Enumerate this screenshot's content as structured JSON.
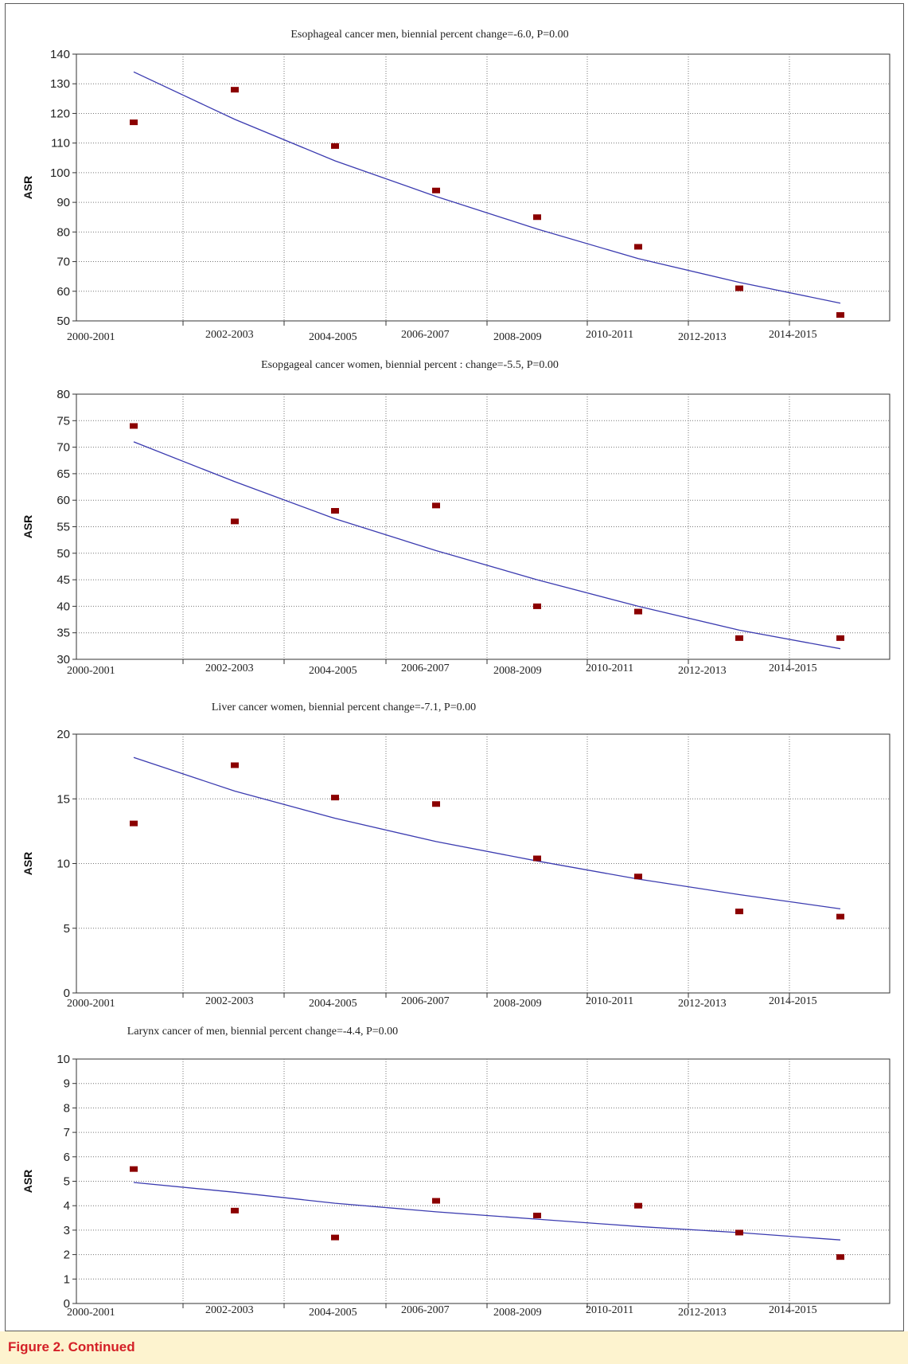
{
  "caption": "Figure 2. Continued",
  "colors": {
    "point": "#8b0000",
    "fit_line": "#3b3bb0",
    "caption_bg": "#fdf3cf",
    "caption_text": "#d42027"
  },
  "chart_data": [
    {
      "type": "scatter",
      "title": "Esophageal cancer men, biennial percent  change=-6.0, P=0.00",
      "ylabel": "ASR",
      "xlabel": "",
      "categories": [
        "2000-2001",
        "2002-2003",
        "2004-2005",
        "2006-2007",
        "2008-2009",
        "2010-2011",
        "2012-2013",
        "2014-2015"
      ],
      "values": [
        117,
        128,
        109,
        94,
        85,
        75,
        61,
        52
      ],
      "fit": [
        134,
        118,
        104,
        92,
        81,
        71,
        63,
        56
      ],
      "ylim": [
        50,
        140
      ],
      "yticks": [
        50,
        60,
        70,
        80,
        90,
        100,
        110,
        120,
        130,
        140
      ],
      "grid": true
    },
    {
      "type": "scatter",
      "title": "Esopgageal cancer women, biennial percent : change=-5.5, P=0.00",
      "ylabel": "ASR",
      "xlabel": "",
      "categories": [
        "2000-2001",
        "2002-2003",
        "2004-2005",
        "2006-2007",
        "2008-2009",
        "2010-2011",
        "2012-2013",
        "2014-2015"
      ],
      "values": [
        74,
        56,
        58,
        59,
        40,
        39,
        34,
        34
      ],
      "fit": [
        71,
        63.5,
        56.5,
        50.5,
        45,
        40,
        35.5,
        32
      ],
      "ylim": [
        30,
        80
      ],
      "yticks": [
        30,
        35,
        40,
        45,
        50,
        55,
        60,
        65,
        70,
        75,
        80
      ],
      "grid": true
    },
    {
      "type": "scatter",
      "title": "Liver cancer women, biennial percent  change=-7.1, P=0.00",
      "ylabel": "ASR",
      "xlabel": "",
      "categories": [
        "2000-2001",
        "2002-2003",
        "2004-2005",
        "2006-2007",
        "2008-2009",
        "2010-2011",
        "2012-2013",
        "2014-2015"
      ],
      "values": [
        13.1,
        17.6,
        15.1,
        14.6,
        10.4,
        9.0,
        6.3,
        5.9
      ],
      "fit": [
        18.2,
        15.6,
        13.5,
        11.7,
        10.2,
        8.8,
        7.6,
        6.5
      ],
      "ylim": [
        0,
        20
      ],
      "yticks": [
        0,
        5,
        10,
        15,
        20
      ],
      "grid": true
    },
    {
      "type": "scatter",
      "title": "Larynx cancer of men, biennial percent  change=-4.4, P=0.00",
      "ylabel": "ASR",
      "xlabel": "",
      "categories": [
        "2000-2001",
        "2002-2003",
        "2004-2005",
        "2006-2007",
        "2008-2009",
        "2010-2011",
        "2012-2013",
        "2014-2015"
      ],
      "values": [
        5.5,
        3.8,
        2.7,
        4.2,
        3.6,
        4.0,
        2.9,
        1.9
      ],
      "fit": [
        4.95,
        4.55,
        4.1,
        3.75,
        3.45,
        3.15,
        2.9,
        2.6
      ],
      "ylim": [
        0,
        10
      ],
      "yticks": [
        0,
        1,
        2,
        3,
        4,
        5,
        6,
        7,
        8,
        9,
        10
      ],
      "grid": true
    }
  ]
}
